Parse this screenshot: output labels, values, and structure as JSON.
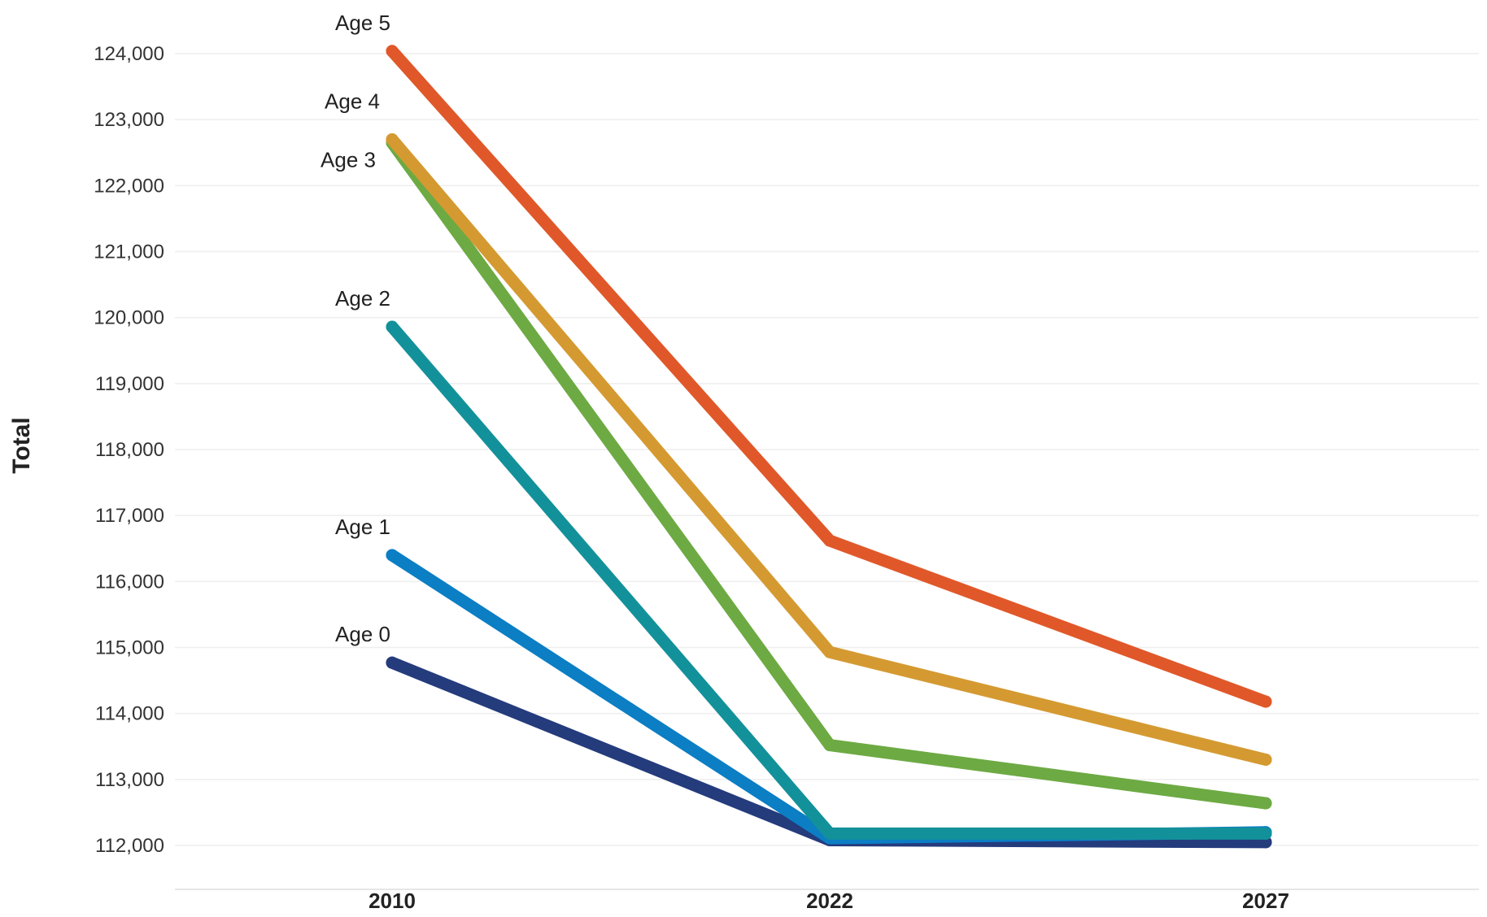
{
  "chart_data": {
    "type": "line",
    "x": [
      "2010",
      "2022",
      "2027"
    ],
    "ylabel": "Total",
    "ylim": [
      111300,
      124400
    ],
    "yticks": [
      112000,
      113000,
      114000,
      115000,
      116000,
      117000,
      118000,
      119000,
      120000,
      121000,
      122000,
      123000,
      124000
    ],
    "ytick_labels": [
      "112,000",
      "113,000",
      "114,000",
      "115,000",
      "116,000",
      "117,000",
      "118,000",
      "119,000",
      "120,000",
      "121,000",
      "122,000",
      "123,000",
      "124,000"
    ],
    "grid": true,
    "series": [
      {
        "name": "Age 0",
        "values": [
          114770,
          112080,
          112050
        ],
        "color": "#243b7c"
      },
      {
        "name": "Age 1",
        "values": [
          116400,
          112110,
          112200
        ],
        "color": "#0b7ec4"
      },
      {
        "name": "Age 2",
        "values": [
          119860,
          112180,
          112180
        ],
        "color": "#13919a"
      },
      {
        "name": "Age 3",
        "values": [
          122650,
          113520,
          112640
        ],
        "color": "#6daa43"
      },
      {
        "name": "Age 4",
        "values": [
          122700,
          114930,
          113300
        ],
        "color": "#d49a31"
      },
      {
        "name": "Age 5",
        "values": [
          124040,
          116620,
          114180
        ],
        "color": "#e0582a"
      }
    ]
  }
}
